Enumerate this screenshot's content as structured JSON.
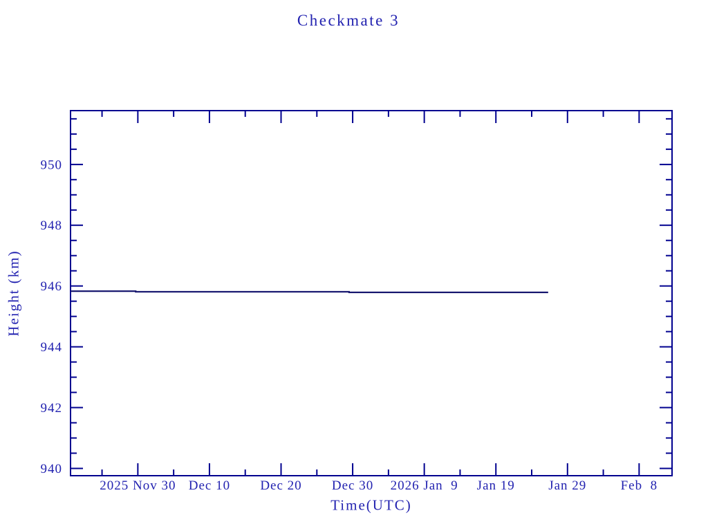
{
  "title": "Checkmate 3",
  "chart_data": {
    "type": "line",
    "title": "Checkmate 3",
    "xlabel": "Time(UTC)",
    "ylabel": "Height (km)",
    "grid": false,
    "legend": false,
    "colors": {
      "axis": "#00008f",
      "text": "#2222b0",
      "line": "#191970",
      "background": "#ffffff"
    },
    "x_axis": {
      "type": "time",
      "units": "days relative to 2025-11-30 00:00 UTC",
      "range": [
        -9.4,
        74.6
      ],
      "major_ticks": [
        {
          "day": 0,
          "label": "2025 Nov 30"
        },
        {
          "day": 10,
          "label": "Dec 10"
        },
        {
          "day": 20,
          "label": "Dec 20"
        },
        {
          "day": 30,
          "label": "Dec 30"
        },
        {
          "day": 40,
          "label": "2026 Jan  9"
        },
        {
          "day": 50,
          "label": "Jan 19"
        },
        {
          "day": 60,
          "label": "Jan 29"
        },
        {
          "day": 70,
          "label": "Feb  8"
        }
      ],
      "minor_ticks_days": [
        -5,
        5,
        15,
        25,
        35,
        45,
        55,
        65
      ]
    },
    "y_axis": {
      "range": [
        939.76,
        951.77
      ],
      "major_ticks": [
        940,
        942,
        944,
        946,
        948,
        950
      ],
      "minor_tick_interval": 0.5
    },
    "series": [
      {
        "name": "Checkmate 3 height",
        "points": [
          {
            "day": -9.4,
            "date_utc": "2025 Nov 21",
            "height_km": 945.83
          },
          {
            "day": -0.3,
            "date_utc": "2025 Nov 30",
            "height_km": 945.83
          },
          {
            "day": -0.3,
            "date_utc": "2025 Nov 30",
            "height_km": 945.81
          },
          {
            "day": 29.5,
            "date_utc": "2025 Dec 29",
            "height_km": 945.81
          },
          {
            "day": 29.5,
            "date_utc": "2025 Dec 29",
            "height_km": 945.79
          },
          {
            "day": 57.3,
            "date_utc": "2026 Jan 26",
            "height_km": 945.79
          }
        ]
      }
    ]
  }
}
